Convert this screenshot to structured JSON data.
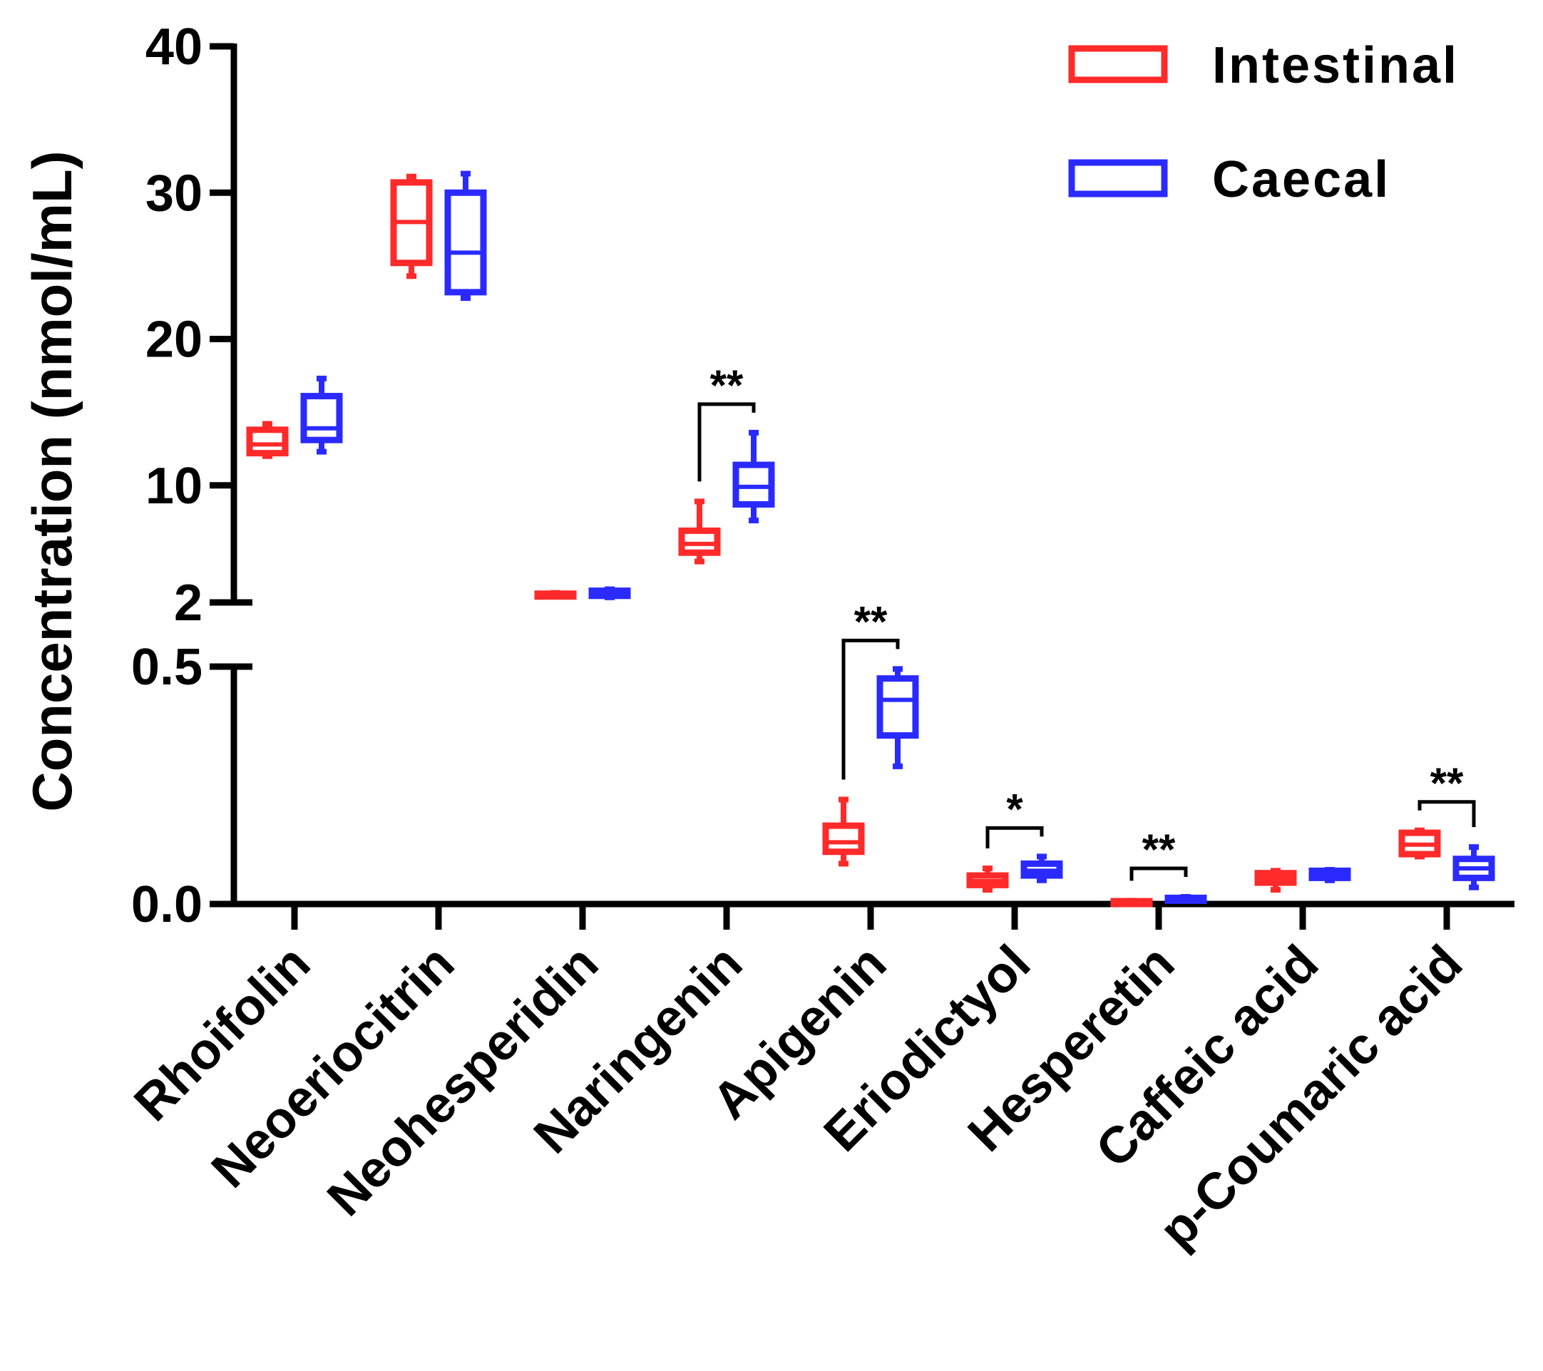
{
  "chart_data": {
    "type": "box",
    "ylabel": "Concentration (nmol/mL)",
    "y_axis_break": {
      "upper_segment": {
        "range": [
          2,
          40
        ],
        "ticks": [
          2,
          10,
          20,
          30,
          40
        ]
      },
      "lower_segment": {
        "range": [
          0,
          0.5
        ],
        "ticks": [
          0.0,
          0.5
        ]
      }
    },
    "tick_labels": {
      "40": "40",
      "30": "30",
      "20": "20",
      "10": "10",
      "2": "2",
      "0.5": "0.5",
      "0.0": "0.0"
    },
    "categories": [
      "Rhoifolin",
      "Neoeriocitrin",
      "Neohesperidin",
      "Naringenin",
      "Apigenin",
      "Eriodictyol",
      "Hesperetin",
      "Caffeic acid",
      "p-Coumaric acid"
    ],
    "legend": {
      "position": "top-right"
    },
    "series": [
      {
        "name": "Intestinal",
        "color": "#ff2a2a",
        "boxes": [
          {
            "min": 12.0,
            "q1": 12.2,
            "median": 12.8,
            "q3": 13.8,
            "max": 14.2
          },
          {
            "min": 24.3,
            "q1": 25.2,
            "median": 28.0,
            "q3": 30.7,
            "max": 31.1
          },
          {
            "min": 2.4,
            "q1": 2.45,
            "median": 2.5,
            "q3": 2.6,
            "max": 2.65
          },
          {
            "min": 4.8,
            "q1": 5.4,
            "median": 6.0,
            "q3": 6.9,
            "max": 8.9
          },
          {
            "min": 0.085,
            "q1": 0.11,
            "median": 0.13,
            "q3": 0.165,
            "max": 0.22
          },
          {
            "min": 0.03,
            "q1": 0.04,
            "median": 0.048,
            "q3": 0.06,
            "max": 0.075
          },
          {
            "min": 0.003,
            "q1": 0.004,
            "median": 0.005,
            "q3": 0.006,
            "max": 0.007
          },
          {
            "min": 0.03,
            "q1": 0.045,
            "median": 0.055,
            "q3": 0.065,
            "max": 0.07
          },
          {
            "min": 0.1,
            "q1": 0.105,
            "median": 0.125,
            "q3": 0.15,
            "max": 0.155
          }
        ]
      },
      {
        "name": "Caecal",
        "color": "#2a2aff",
        "boxes": [
          {
            "min": 12.3,
            "q1": 13.1,
            "median": 13.9,
            "q3": 16.1,
            "max": 17.3
          },
          {
            "min": 22.8,
            "q1": 23.2,
            "median": 25.9,
            "q3": 30.0,
            "max": 31.3
          },
          {
            "min": 2.35,
            "q1": 2.45,
            "median": 2.6,
            "q3": 2.8,
            "max": 2.9
          },
          {
            "min": 7.6,
            "q1": 8.7,
            "median": 9.9,
            "q3": 11.4,
            "max": 13.6
          },
          {
            "min": 0.29,
            "q1": 0.355,
            "median": 0.43,
            "q3": 0.475,
            "max": 0.495
          },
          {
            "min": 0.05,
            "q1": 0.06,
            "median": 0.07,
            "q3": 0.085,
            "max": 0.1
          },
          {
            "min": 0.008,
            "q1": 0.009,
            "median": 0.011,
            "q3": 0.013,
            "max": 0.015
          },
          {
            "min": 0.05,
            "q1": 0.055,
            "median": 0.062,
            "q3": 0.07,
            "max": 0.072
          },
          {
            "min": 0.035,
            "q1": 0.055,
            "median": 0.075,
            "q3": 0.095,
            "max": 0.12
          }
        ]
      }
    ],
    "significance": [
      {
        "category": "Naringenin",
        "label": "**"
      },
      {
        "category": "Apigenin",
        "label": "**"
      },
      {
        "category": "Eriodictyol",
        "label": "*"
      },
      {
        "category": "Hesperetin",
        "label": "**"
      },
      {
        "category": "p-Coumaric acid",
        "label": "**"
      }
    ]
  }
}
